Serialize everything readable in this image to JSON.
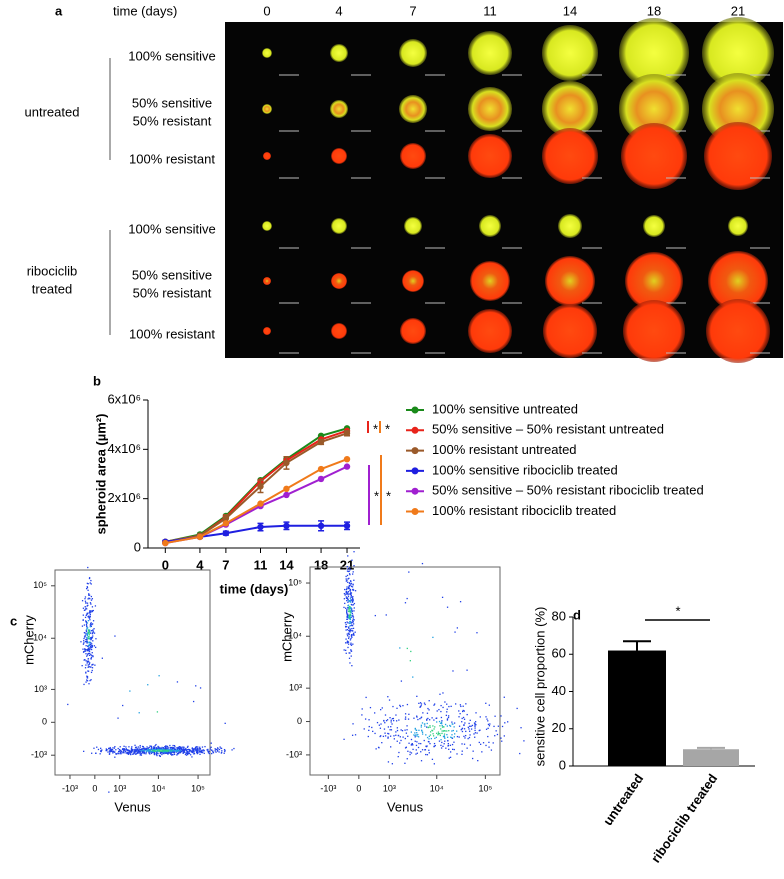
{
  "panel_a": {
    "label": "a",
    "header": "time (days)",
    "columns": [
      "0",
      "4",
      "7",
      "11",
      "14",
      "18",
      "21"
    ],
    "groups": [
      {
        "name": [
          "untreated"
        ],
        "rows": [
          [
            "100% sensitive"
          ],
          [
            "50% sensitive",
            "50% resistant"
          ],
          [
            "100% resistant"
          ]
        ]
      },
      {
        "name": [
          "ribociclib",
          "treated"
        ],
        "rows": [
          [
            "100% sensitive"
          ],
          [
            "50% sensitive",
            "50% resistant"
          ],
          [
            "100% resistant"
          ]
        ]
      }
    ]
  },
  "chart_data": [
    {
      "type": "line",
      "label": "b",
      "xlabel": "time (days)",
      "ylabel": "spheroid area (µm²)",
      "x": [
        0,
        4,
        7,
        11,
        14,
        18,
        21
      ],
      "xlim": [
        -2,
        22.5
      ],
      "xticks": [
        0,
        4,
        7,
        11,
        14,
        18,
        21
      ],
      "ylim": [
        0,
        6000000
      ],
      "yticks": [
        0,
        {
          "value": 2000000,
          "label": "2x10⁶"
        },
        {
          "value": 4000000,
          "label": "4x10⁶"
        },
        {
          "value": 6000000,
          "label": "6x10⁶"
        }
      ],
      "series": [
        {
          "name": "100% sensitive untreated",
          "color": "#1a8a1a",
          "values": [
            250000,
            550000,
            1300000,
            2750000,
            3600000,
            4550000,
            4850000
          ]
        },
        {
          "name": "50% sensitive – 50% resistant untreated",
          "color": "#e8231a",
          "values": [
            250000,
            500000,
            1250000,
            2700000,
            3550000,
            4400000,
            4750000
          ]
        },
        {
          "name": "100% resistant untreated",
          "color": "#9a5a2a",
          "values": [
            250000,
            500000,
            1200000,
            2500000,
            3450000,
            4300000,
            4650000
          ],
          "errors": [
            50000,
            60000,
            150000,
            250000,
            250000,
            100000,
            100000
          ]
        },
        {
          "name": "100% sensitive ribociclib treated",
          "color": "#1f1fe0",
          "values": [
            250000,
            450000,
            600000,
            850000,
            900000,
            900000,
            900000
          ],
          "errors": [
            50000,
            50000,
            80000,
            150000,
            150000,
            200000,
            150000
          ]
        },
        {
          "name": "50% sensitive – 50% resistant ribociclib treated",
          "color": "#a020d0",
          "values": [
            200000,
            450000,
            950000,
            1700000,
            2150000,
            2800000,
            3300000
          ]
        },
        {
          "name": "100% resistant ribociclib treated",
          "color": "#f07a1a",
          "values": [
            200000,
            450000,
            1000000,
            1800000,
            2400000,
            3200000,
            3600000
          ]
        }
      ],
      "annotations": [
        "*",
        "*",
        "*",
        "*"
      ]
    },
    {
      "type": "density",
      "label": "c",
      "xlabel": "Venus",
      "ylabel": "mCherry",
      "scale": "biexponential",
      "xlim": [
        -2500,
        200000
      ],
      "ylim": [
        -2500,
        200000
      ],
      "xticks": [
        {
          "value": -1000,
          "label": "-10³"
        },
        0,
        {
          "value": 1000,
          "label": "10³"
        },
        {
          "value": 10000,
          "label": "10⁴"
        },
        {
          "value": 100000,
          "label": "10⁵"
        }
      ],
      "yticks": [
        {
          "value": -1000,
          "label": "-10³"
        },
        0,
        {
          "value": 1000,
          "label": "10³"
        },
        {
          "value": 10000,
          "label": "10⁴"
        },
        {
          "value": 100000,
          "label": "10⁵"
        }
      ]
    },
    {
      "type": "density",
      "xlabel": "Venus",
      "ylabel": "mCherry",
      "scale": "biexponential",
      "xlim": [
        -2500,
        200000
      ],
      "ylim": [
        -2500,
        200000
      ],
      "xticks": [
        {
          "value": -1000,
          "label": "-10³"
        },
        0,
        {
          "value": 1000,
          "label": "10³"
        },
        {
          "value": 10000,
          "label": "10⁴"
        },
        {
          "value": 100000,
          "label": "10⁵"
        }
      ],
      "yticks": [
        {
          "value": -1000,
          "label": "-10³"
        },
        0,
        {
          "value": 1000,
          "label": "10³"
        },
        {
          "value": 10000,
          "label": "10⁴"
        },
        {
          "value": 100000,
          "label": "10⁵"
        }
      ]
    },
    {
      "type": "bar",
      "label": "d",
      "ylabel": "sensitive cell proportion (%)",
      "categories": [
        "untreated",
        "ribociclib treated"
      ],
      "values": [
        62,
        9
      ],
      "errors": [
        5,
        0.7
      ],
      "colors": [
        "#000000",
        "#a6a6a6"
      ],
      "ylim": [
        0,
        80
      ],
      "yticks": [
        0,
        20,
        40,
        60,
        80
      ],
      "annotation": "*"
    }
  ]
}
